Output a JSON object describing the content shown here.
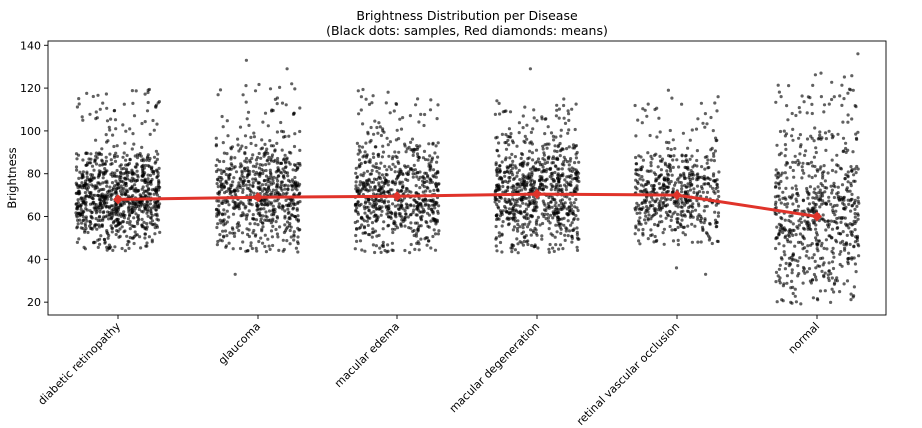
{
  "chart_data": {
    "type": "scatter",
    "title": "Brightness Distribution per Disease",
    "subtitle": "(Black dots: samples, Red diamonds: means)",
    "xlabel": "",
    "ylabel": "Brightness",
    "ylim": [
      14,
      142
    ],
    "yticks": [
      20,
      40,
      60,
      80,
      100,
      120,
      140
    ],
    "grid": false,
    "categories": [
      "diabetic retinopathy",
      "glaucoma",
      "macular edema",
      "macular degeneration",
      "retinal vascular occlusion",
      "normal"
    ],
    "means": [
      68,
      69,
      69.5,
      70.5,
      70,
      60
    ],
    "sample_distributions": [
      {
        "category": "diabetic retinopathy",
        "count": 900,
        "core_range": [
          44,
          90
        ],
        "upper_tail": [
          90,
          120
        ],
        "outliers": []
      },
      {
        "category": "glaucoma",
        "count": 700,
        "core_range": [
          43,
          96
        ],
        "upper_tail": [
          96,
          123
        ],
        "outliers": [
          129,
          133,
          33
        ]
      },
      {
        "category": "macular edema",
        "count": 700,
        "core_range": [
          43,
          95
        ],
        "upper_tail": [
          95,
          120
        ],
        "outliers": []
      },
      {
        "category": "macular degeneration",
        "count": 800,
        "core_range": [
          43,
          97
        ],
        "upper_tail": [
          97,
          115
        ],
        "outliers": [
          129
        ]
      },
      {
        "category": "retinal vascular occlusion",
        "count": 550,
        "core_range": [
          46,
          92
        ],
        "upper_tail": [
          92,
          116
        ],
        "outliers": [
          33,
          36,
          119
        ]
      },
      {
        "category": "normal",
        "count": 650,
        "core_range": [
          19,
          100
        ],
        "upper_tail": [
          100,
          127
        ],
        "outliers": [
          136,
          127
        ]
      }
    ],
    "sample_color": "#000000",
    "mean_color": "#e0332a",
    "mean_marker": "diamond"
  }
}
